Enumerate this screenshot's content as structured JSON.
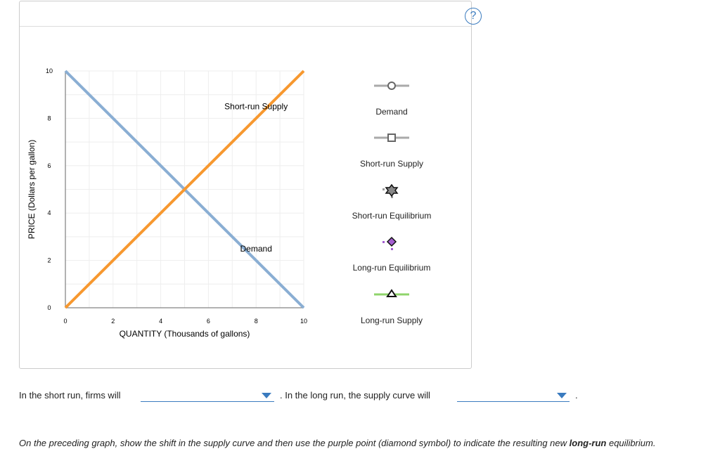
{
  "help_icon": "?",
  "chart_data": {
    "type": "line",
    "xlabel": "QUANTITY (Thousands of gallons)",
    "ylabel": "PRICE (Dollars per gallon)",
    "xlim": [
      0,
      10
    ],
    "ylim": [
      0,
      10
    ],
    "xticks": [
      "0",
      "2",
      "4",
      "6",
      "8",
      "10"
    ],
    "yticks": [
      "0",
      "2",
      "4",
      "6",
      "8",
      "10"
    ],
    "grid": true,
    "series": [
      {
        "name": "Demand",
        "color": "#8aaed3",
        "points": [
          [
            0,
            10
          ],
          [
            10,
            0
          ]
        ]
      },
      {
        "name": "Short-run Supply",
        "color": "#f7982f",
        "points": [
          [
            0,
            0
          ],
          [
            10,
            10
          ]
        ]
      }
    ],
    "annotations": [
      {
        "text": "Short-run Supply",
        "x": 8,
        "y": 8.5
      },
      {
        "text": "Demand",
        "x": 8,
        "y": 2.5
      }
    ]
  },
  "legend": [
    {
      "label": "Demand",
      "icon": "circle-line-icon"
    },
    {
      "label": "Short-run Supply",
      "icon": "square-line-icon"
    },
    {
      "label": "Short-run Equilibrium",
      "icon": "star-point-icon"
    },
    {
      "label": "Long-run Equilibrium",
      "icon": "diamond-point-icon",
      "color": "#a45ed0"
    },
    {
      "label": "Long-run Supply",
      "icon": "triangle-line-icon",
      "color": "#8fd46b"
    }
  ],
  "question": {
    "part1": "In the short run, firms will",
    "part2": ". In the long run, the supply curve will",
    "part3": ".",
    "dropdown1": "",
    "dropdown2": ""
  },
  "instruction": {
    "text": "On the preceding graph, show the shift in the supply curve and then use the purple point (diamond symbol) to indicate the resulting new ",
    "bold": "long-run",
    "end": " equilibrium."
  }
}
